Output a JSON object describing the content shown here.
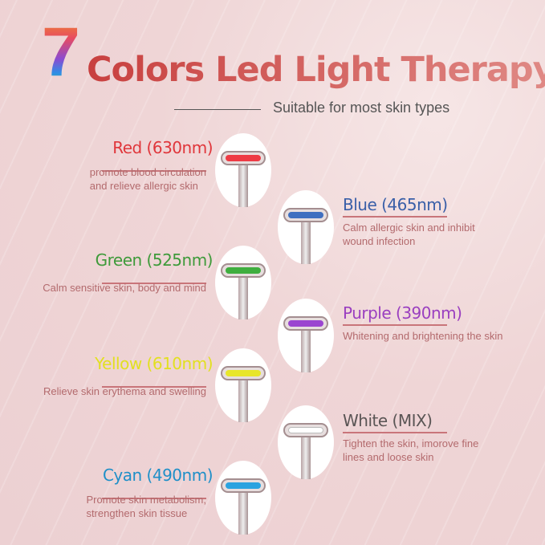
{
  "header": {
    "number": "7",
    "title": "Colors Led Light Therapy",
    "subtitle": "Suitable for most skin types"
  },
  "items": [
    {
      "title": "Red  (630nm)",
      "desc": [
        "promote blood circulation",
        "and relieve allergic skin"
      ],
      "color": "#e0363b",
      "led": "#ee3b45"
    },
    {
      "title": "Blue  (465nm)",
      "desc": [
        "Calm allergic skin and inhibit",
        "wound infection"
      ],
      "color": "#3a5fa8",
      "led": "#3f6fc0"
    },
    {
      "title": "Green  (525nm)",
      "desc": [
        "Calm sensitive skin, body and mind"
      ],
      "color": "#3e9a3a",
      "led": "#3fae3f"
    },
    {
      "title": "Purple  (390nm)",
      "desc": [
        "Whitening and brightening the skin"
      ],
      "color": "#9a3fc0",
      "led": "#9b45d0"
    },
    {
      "title": "Yellow  (610nm)",
      "desc": [
        "Relieve skin erythema and swelling"
      ],
      "color": "#e2e020",
      "led": "#e8e62a"
    },
    {
      "title": "White  (MIX)",
      "desc": [
        "Tighten the skin, imorove fine",
        "lines and loose skin"
      ],
      "color": "#5a5555",
      "led": "#ffffff"
    },
    {
      "title": "Cyan  (490nm)",
      "desc": [
        "Promote skin metabolism,",
        "strengthen skin tissue"
      ],
      "color": "#1f8fc8",
      "led": "#2aa3e0"
    }
  ]
}
